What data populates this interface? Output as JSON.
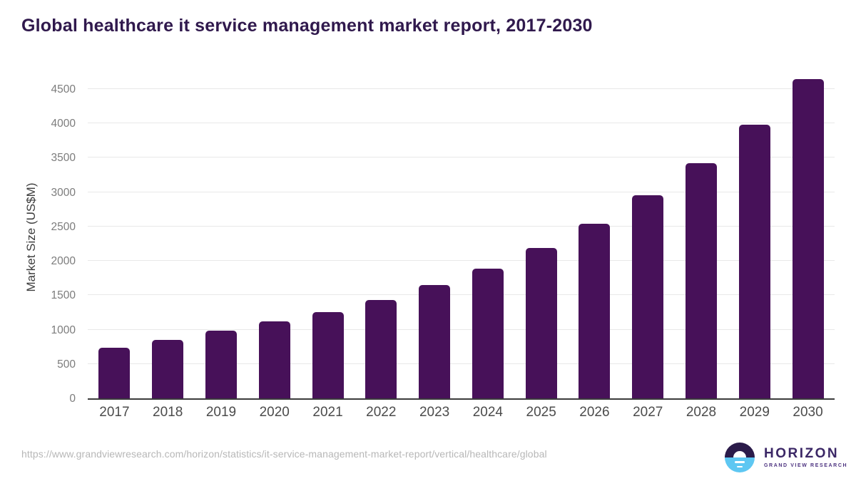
{
  "header": {
    "title": "Global healthcare it service management market report, 2017-2030",
    "title_color": "#30194d"
  },
  "chart_data": {
    "type": "bar",
    "title": "Global healthcare it service management market report, 2017-2030",
    "categories": [
      "2017",
      "2018",
      "2019",
      "2020",
      "2021",
      "2022",
      "2023",
      "2024",
      "2025",
      "2026",
      "2027",
      "2028",
      "2029",
      "2030"
    ],
    "values": [
      735,
      855,
      990,
      1115,
      1255,
      1435,
      1645,
      1890,
      2190,
      2540,
      2955,
      3425,
      3985,
      4645
    ],
    "xlabel": "",
    "ylabel": "Market Size (US$M)",
    "ylim": [
      0,
      4665
    ],
    "yticks": [
      0,
      500,
      1000,
      1500,
      2000,
      2500,
      3000,
      3500,
      4000,
      4500
    ],
    "grid": "horizontal",
    "legend_position": "none",
    "bar_color": "#471159",
    "gridline_color": "#e8e8e8",
    "axis_line_color": "#3c3c3c"
  },
  "footer": {
    "url": "https://www.grandviewresearch.com/horizon/statistics/it-service-management-market-report/vertical/healthcare/global",
    "logo": {
      "name": "HORIZON",
      "subtitle": "GRAND VIEW RESEARCH"
    }
  }
}
